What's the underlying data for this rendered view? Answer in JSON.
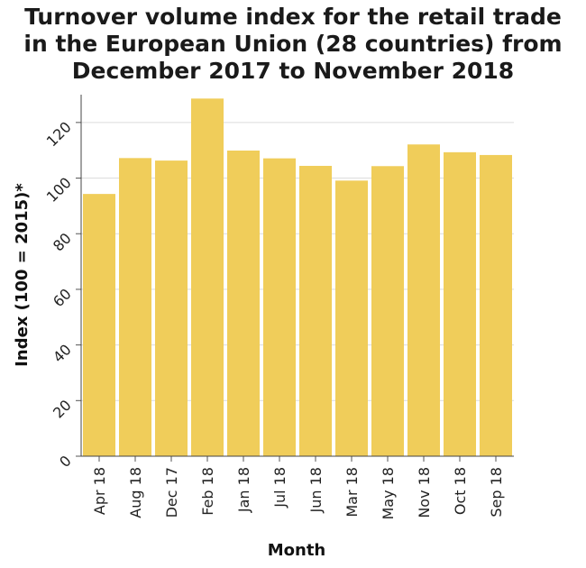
{
  "chart_data": {
    "type": "bar",
    "title_lines": [
      "Turnover volume index for the retail trade",
      "in the European Union (28 countries) from",
      "December 2017 to November 2018"
    ],
    "xlabel": "Month",
    "ylabel": "Index (100 = 2015)*",
    "categories": [
      "Apr 18",
      "Aug 18",
      "Dec 17",
      "Feb 18",
      "Jan 18",
      "Jul 18",
      "Jun 18",
      "Mar 18",
      "May 18",
      "Nov 18",
      "Oct 18",
      "Sep 18"
    ],
    "values": [
      94.3,
      107.2,
      106.3,
      128.6,
      109.9,
      107.1,
      104.4,
      99.1,
      104.3,
      112.1,
      109.3,
      108.3
    ],
    "ylim": [
      0,
      130
    ],
    "yticks": [
      0,
      20,
      40,
      60,
      80,
      100,
      120
    ],
    "grid": true,
    "bar_color": "#f0cd5a"
  }
}
